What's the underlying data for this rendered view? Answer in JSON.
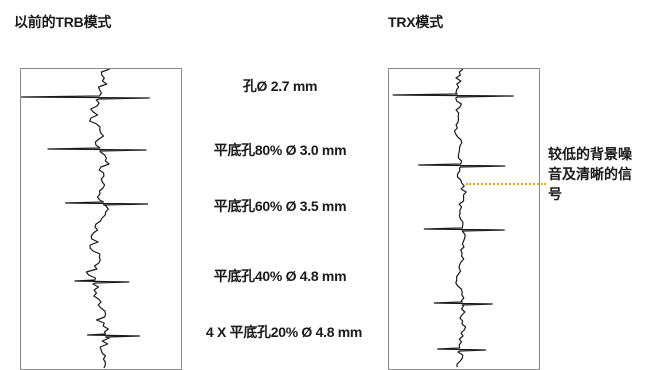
{
  "titles": {
    "left": "以前的TRB模式",
    "right": "TRX模式"
  },
  "flaw_labels": [
    "孔Ø 2.7 mm",
    "平底孔80% Ø 3.0 mm",
    "平底孔60% Ø 3.5 mm",
    "平底孔40% Ø 4.8 mm",
    "4 X 平底孔20% Ø 4.8 mm"
  ],
  "annotation": "较低的背景噪音及清晰的信号",
  "colors": {
    "trace": "#1a1a1a",
    "panel_border": "#8a8a8a",
    "annotation_line": "#e0b400"
  }
}
